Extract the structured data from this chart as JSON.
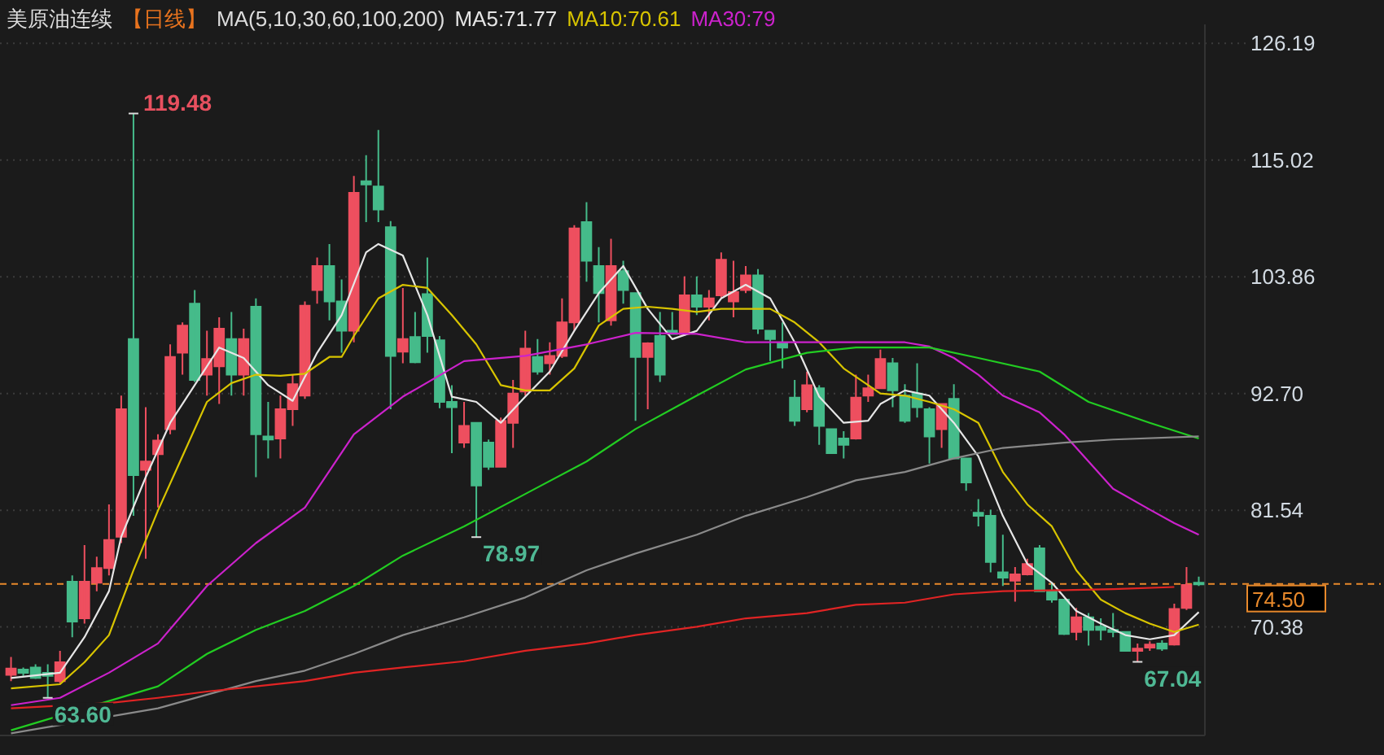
{
  "chart_data": {
    "type": "candlestick",
    "title": "美原油连续",
    "subtitle": "【日线】",
    "annotations": [
      "MA(5,10,30,60,100,200)",
      "119.48",
      "78.97",
      "63.60",
      "67.04"
    ],
    "categories": [
      null,
      null,
      null,
      null,
      null,
      null,
      null,
      null,
      null,
      null,
      null,
      null,
      null,
      null,
      null,
      null,
      null,
      null,
      null,
      null,
      null,
      null,
      null,
      null,
      null,
      null,
      null,
      null,
      null,
      null,
      null,
      null,
      null,
      null,
      null,
      null,
      null,
      null,
      null,
      null,
      null,
      null,
      null,
      null,
      null,
      null,
      null,
      null,
      null,
      null,
      null,
      null,
      null,
      null,
      null,
      null,
      null,
      null,
      null,
      null,
      null,
      null,
      null,
      null,
      null,
      null,
      null,
      null,
      null,
      null,
      null,
      null,
      null,
      null,
      null,
      null,
      null,
      null,
      null,
      null,
      null,
      null,
      null,
      null,
      null,
      null,
      null,
      null,
      null,
      null,
      null,
      null,
      null,
      null,
      null,
      null,
      null,
      null
    ],
    "ohlc": [
      [
        65.8,
        67.5,
        65.2,
        66.4
      ],
      [
        66.3,
        66.5,
        65.7,
        66.0
      ],
      [
        66.5,
        66.8,
        65.4,
        65.5
      ],
      [
        66.0,
        66.8,
        63.6,
        65.7
      ],
      [
        65.2,
        68.1,
        65.0,
        67.0
      ],
      [
        74.7,
        75.3,
        69.4,
        70.9
      ],
      [
        71.2,
        78.2,
        70.7,
        74.7
      ],
      [
        74.6,
        77.1,
        73.8,
        76.0
      ],
      [
        76.0,
        82.1,
        75.3,
        78.7
      ],
      [
        79.0,
        92.5,
        78.4,
        91.2
      ],
      [
        97.9,
        119.48,
        81.0,
        84.9
      ],
      [
        85.4,
        91.4,
        76.9,
        86.2
      ],
      [
        86.9,
        88.8,
        81.8,
        88.2
      ],
      [
        89.3,
        97.4,
        88.8,
        96.2
      ],
      [
        96.6,
        99.5,
        94.5,
        99.2
      ],
      [
        101.3,
        102.6,
        93.8,
        94.0
      ],
      [
        94.5,
        98.7,
        92.5,
        96.0
      ],
      [
        95.3,
        100.0,
        91.7,
        98.9
      ],
      [
        97.9,
        100.5,
        92.5,
        94.5
      ],
      [
        94.5,
        98.9,
        92.5,
        97.9
      ],
      [
        101.0,
        101.8,
        84.7,
        88.8
      ],
      [
        88.6,
        91.9,
        86.5,
        88.3
      ],
      [
        88.4,
        92.5,
        86.5,
        91.2
      ],
      [
        91.2,
        94.5,
        89.6,
        93.6
      ],
      [
        92.5,
        101.5,
        92.2,
        101.1
      ],
      [
        102.6,
        105.7,
        101.3,
        104.9
      ],
      [
        104.9,
        107.0,
        99.7,
        101.5
      ],
      [
        101.5,
        103.6,
        96.6,
        98.7
      ],
      [
        98.7,
        113.5,
        97.6,
        111.9
      ],
      [
        113.0,
        115.5,
        109.1,
        112.7
      ],
      [
        112.5,
        117.9,
        109.1,
        110.3
      ],
      [
        108.6,
        109.2,
        91.2,
        96.3
      ],
      [
        96.7,
        102.8,
        95.6,
        97.9
      ],
      [
        98.1,
        100.5,
        95.6,
        95.7
      ],
      [
        102.2,
        105.7,
        96.6,
        98.2
      ],
      [
        97.8,
        98.2,
        91.3,
        91.9
      ],
      [
        91.9,
        93.5,
        87.0,
        91.4
      ],
      [
        88.0,
        91.9,
        87.5,
        89.6
      ],
      [
        89.9,
        89.9,
        78.97,
        83.9
      ],
      [
        88.0,
        88.3,
        85.4,
        85.7
      ],
      [
        85.7,
        90.4,
        85.7,
        90.1
      ],
      [
        89.9,
        94.0,
        87.5,
        92.7
      ],
      [
        92.9,
        98.7,
        92.5,
        97.0
      ],
      [
        96.2,
        97.9,
        94.5,
        94.8
      ],
      [
        95.6,
        97.6,
        94.5,
        96.3
      ],
      [
        96.3,
        101.8,
        96.1,
        99.5
      ],
      [
        99.5,
        108.8,
        98.7,
        108.5
      ],
      [
        109.1,
        111.0,
        103.4,
        105.4
      ],
      [
        104.9,
        106.7,
        99.5,
        102.3
      ],
      [
        99.7,
        107.5,
        99.2,
        104.9
      ],
      [
        104.4,
        105.4,
        101.3,
        102.6
      ],
      [
        102.3,
        102.3,
        90.1,
        96.2
      ],
      [
        96.2,
        97.6,
        91.2,
        97.5
      ],
      [
        98.2,
        100.5,
        93.8,
        94.5
      ],
      [
        98.7,
        100.5,
        98.4,
        98.4
      ],
      [
        98.4,
        103.9,
        98.2,
        102.1
      ],
      [
        102.1,
        103.9,
        100.2,
        101.0
      ],
      [
        101.0,
        102.6,
        99.7,
        101.8
      ],
      [
        102.1,
        106.2,
        101.8,
        105.5
      ],
      [
        101.5,
        105.4,
        100.0,
        102.4
      ],
      [
        102.6,
        104.9,
        102.3,
        104.0
      ],
      [
        104.0,
        104.6,
        98.4,
        98.9
      ],
      [
        98.7,
        98.7,
        95.8,
        97.9
      ],
      [
        97.5,
        99.5,
        95.1,
        97.1
      ],
      [
        92.3,
        94.0,
        89.6,
        90.1
      ],
      [
        91.2,
        94.8,
        90.9,
        93.5
      ],
      [
        93.2,
        93.5,
        87.8,
        89.6
      ],
      [
        89.3,
        89.3,
        87.0,
        87.0
      ],
      [
        88.4,
        89.1,
        86.5,
        87.8
      ],
      [
        88.4,
        94.5,
        88.3,
        92.3
      ],
      [
        92.5,
        94.5,
        91.9,
        93.2
      ],
      [
        93.2,
        96.9,
        93.2,
        96.0
      ],
      [
        95.6,
        96.1,
        91.4,
        93.0
      ],
      [
        92.5,
        93.6,
        89.9,
        90.1
      ],
      [
        92.7,
        95.6,
        90.4,
        91.4
      ],
      [
        91.2,
        91.4,
        86.0,
        88.6
      ],
      [
        89.3,
        91.7,
        87.5,
        91.7
      ],
      [
        92.2,
        93.6,
        86.5,
        86.5
      ],
      [
        86.5,
        86.5,
        83.4,
        84.2
      ],
      [
        81.3,
        82.6,
        80.0,
        81.0
      ],
      [
        81.0,
        81.6,
        75.6,
        76.6
      ],
      [
        75.6,
        79.2,
        74.3,
        75.1
      ],
      [
        74.8,
        76.1,
        72.8,
        75.4
      ],
      [
        75.4,
        76.9,
        75.3,
        76.4
      ],
      [
        77.9,
        78.2,
        73.8,
        73.8
      ],
      [
        73.8,
        74.6,
        72.7,
        73.0
      ],
      [
        73.0,
        73.0,
        69.6,
        69.7
      ],
      [
        69.9,
        72.2,
        69.1,
        71.3
      ],
      [
        71.3,
        71.7,
        68.6,
        70.1
      ],
      [
        70.4,
        71.2,
        69.1,
        70.1
      ],
      [
        70.1,
        71.7,
        69.4,
        69.9
      ],
      [
        69.9,
        69.9,
        68.1,
        68.1
      ],
      [
        68.1,
        68.8,
        67.04,
        68.3
      ],
      [
        68.4,
        69.0,
        68.1,
        68.7
      ],
      [
        68.8,
        69.1,
        68.1,
        68.3
      ],
      [
        68.7,
        72.6,
        68.6,
        72.1
      ],
      [
        72.2,
        76.1,
        72.0,
        74.4
      ],
      [
        74.6,
        75.2,
        74.3,
        74.5
      ]
    ],
    "colors": [
      "#ee4f5f",
      "#45bb8a",
      "#45bb8a",
      "#45bb8a",
      "#ee4f5f",
      "#45bb8a",
      "#ee4f5f",
      "#ee4f5f",
      "#ee4f5f",
      "#ee4f5f",
      "#45bb8a",
      "#ee4f5f",
      "#ee4f5f",
      "#ee4f5f",
      "#ee4f5f",
      "#45bb8a",
      "#ee4f5f",
      "#ee4f5f",
      "#45bb8a",
      "#ee4f5f",
      "#45bb8a",
      "#45bb8a",
      "#ee4f5f",
      "#ee4f5f",
      "#ee4f5f",
      "#ee4f5f",
      "#45bb8a",
      "#45bb8a",
      "#ee4f5f",
      "#45bb8a",
      "#45bb8a",
      "#45bb8a",
      "#ee4f5f",
      "#45bb8a",
      "#45bb8a",
      "#45bb8a",
      "#45bb8a",
      "#ee4f5f",
      "#45bb8a",
      "#45bb8a",
      "#ee4f5f",
      "#ee4f5f",
      "#ee4f5f",
      "#45bb8a",
      "#ee4f5f",
      "#ee4f5f",
      "#ee4f5f",
      "#45bb8a",
      "#45bb8a",
      "#ee4f5f",
      "#45bb8a",
      "#45bb8a",
      "#ee4f5f",
      "#45bb8a",
      "#45bb8a",
      "#ee4f5f",
      "#45bb8a",
      "#ee4f5f",
      "#ee4f5f",
      "#ee4f5f",
      "#ee4f5f",
      "#45bb8a",
      "#45bb8a",
      "#45bb8a",
      "#45bb8a",
      "#ee4f5f",
      "#45bb8a",
      "#45bb8a",
      "#45bb8a",
      "#ee4f5f",
      "#ee4f5f",
      "#ee4f5f",
      "#45bb8a",
      "#45bb8a",
      "#45bb8a",
      "#45bb8a",
      "#ee4f5f",
      "#45bb8a",
      "#45bb8a",
      "#45bb8a",
      "#45bb8a",
      "#45bb8a",
      "#ee4f5f",
      "#ee4f5f",
      "#45bb8a",
      "#45bb8a",
      "#45bb8a",
      "#ee4f5f",
      "#45bb8a",
      "#45bb8a",
      "#45bb8a",
      "#45bb8a",
      "#ee4f5f",
      "#ee4f5f",
      "#45bb8a",
      "#ee4f5f",
      "#ee4f5f",
      "#45bb8a"
    ],
    "series": [
      {
        "type": "line",
        "name": "MA5:71.77",
        "color": "#e6e6e6",
        "values": [
          65.5,
          null,
          null,
          null,
          66.0,
          null,
          69.4,
          null,
          73.8,
          79.0,
          null,
          84.7,
          null,
          89.9,
          null,
          93.5,
          null,
          97.1,
          null,
          96.1,
          null,
          93.5,
          null,
          92.0,
          null,
          96.6,
          null,
          100.2,
          null,
          106.2,
          107.0,
          null,
          105.9,
          null,
          100.2,
          null,
          92.4,
          null,
          91.9,
          null,
          89.9,
          null,
          92.4,
          null,
          94.8,
          null,
          98.7,
          null,
          102.3,
          null,
          104.9,
          null,
          100.8,
          null,
          97.9,
          null,
          98.7,
          null,
          101.8,
          null,
          103.1,
          null,
          101.8,
          null,
          97.6,
          null,
          92.4,
          null,
          89.9,
          null,
          90.1,
          91.7,
          null,
          93.0,
          null,
          92.5,
          null,
          89.9,
          null,
          86.7,
          null,
          81.0,
          null,
          76.4,
          null,
          74.6,
          null,
          71.9,
          null,
          70.7,
          null,
          69.6,
          null,
          69.2,
          null,
          69.6,
          null,
          71.8
        ]
      },
      {
        "type": "line",
        "name": "MA10:70.61",
        "color": "#d8c400",
        "values": [
          64.5,
          null,
          null,
          null,
          64.9,
          null,
          67.0,
          null,
          69.6,
          null,
          75.8,
          null,
          81.5,
          null,
          86.7,
          null,
          91.9,
          null,
          93.7,
          null,
          94.5,
          null,
          94.4,
          null,
          94.6,
          null,
          96.2,
          96.2,
          98.2,
          null,
          101.8,
          null,
          103.1,
          null,
          102.8,
          null,
          100.2,
          null,
          97.4,
          null,
          93.5,
          null,
          93.0,
          null,
          93.0,
          null,
          95.1,
          null,
          99.2,
          null,
          100.8,
          null,
          101.0,
          null,
          100.8,
          null,
          100.5,
          null,
          100.8,
          null,
          100.8,
          null,
          100.8,
          null,
          99.5,
          null,
          97.6,
          null,
          95.1,
          null,
          93.5,
          92.7,
          null,
          92.5,
          null,
          91.9,
          null,
          91.2,
          null,
          89.9,
          null,
          85.2,
          null,
          82.1,
          null,
          80.0,
          null,
          75.8,
          null,
          73.0,
          null,
          71.7,
          null,
          70.7,
          null,
          69.9,
          null,
          70.6
        ]
      },
      {
        "type": "line",
        "name": "MA30:79",
        "color": "#cc22cc",
        "values": [
          62.9,
          null,
          null,
          null,
          63.6,
          null,
          null,
          null,
          66.0,
          null,
          null,
          null,
          68.8,
          null,
          null,
          null,
          74.3,
          null,
          null,
          null,
          78.4,
          null,
          null,
          null,
          81.8,
          null,
          null,
          null,
          88.8,
          null,
          null,
          null,
          92.4,
          null,
          null,
          null,
          null,
          95.8,
          null,
          null,
          null,
          null,
          96.3,
          null,
          null,
          null,
          null,
          97.4,
          null,
          null,
          null,
          98.5,
          null,
          null,
          null,
          null,
          98.4,
          null,
          null,
          null,
          97.6,
          null,
          null,
          null,
          null,
          97.6,
          null,
          null,
          null,
          97.6,
          null,
          null,
          null,
          97.6,
          null,
          97.2,
          null,
          96.1,
          null,
          94.5,
          null,
          92.5,
          null,
          null,
          90.9,
          null,
          88.8,
          null,
          86.2,
          null,
          83.6,
          null,
          null,
          81.6,
          null,
          80.3,
          null,
          79.2
        ]
      },
      {
        "type": "line",
        "color": "#22cc22",
        "values": [
          60.5,
          null,
          null,
          null,
          null,
          null,
          null,
          null,
          null,
          null,
          null,
          null,
          64.7,
          null,
          null,
          null,
          67.8,
          null,
          null,
          null,
          70.1,
          null,
          null,
          null,
          71.9,
          null,
          null,
          null,
          74.3,
          null,
          null,
          null,
          77.2,
          null,
          null,
          null,
          null,
          80.0,
          null,
          null,
          null,
          null,
          83.1,
          null,
          null,
          null,
          null,
          86.2,
          null,
          null,
          null,
          89.3,
          null,
          null,
          null,
          null,
          92.5,
          null,
          null,
          null,
          95.0,
          null,
          null,
          null,
          null,
          96.6,
          null,
          null,
          null,
          97.1,
          null,
          null,
          null,
          null,
          null,
          97.1,
          null,
          null,
          null,
          96.1,
          null,
          null,
          null,
          null,
          94.8,
          null,
          null,
          null,
          91.9,
          null,
          null,
          null,
          null,
          89.9,
          null,
          null,
          null,
          88.4
        ]
      },
      {
        "type": "line",
        "color": "#8a8a8a",
        "values": [
          60.2,
          null,
          null,
          null,
          null,
          null,
          null,
          null,
          null,
          null,
          null,
          null,
          62.6,
          null,
          null,
          null,
          63.9,
          null,
          null,
          null,
          65.2,
          null,
          null,
          null,
          66.2,
          null,
          null,
          null,
          67.8,
          null,
          null,
          null,
          69.6,
          null,
          null,
          null,
          null,
          71.3,
          null,
          null,
          null,
          null,
          73.2,
          null,
          null,
          null,
          null,
          75.8,
          null,
          null,
          null,
          77.4,
          null,
          null,
          null,
          null,
          79.2,
          null,
          null,
          null,
          81.0,
          null,
          null,
          null,
          null,
          82.8,
          null,
          null,
          null,
          84.4,
          null,
          null,
          null,
          85.2,
          null,
          null,
          null,
          86.5,
          null,
          null,
          null,
          87.5,
          null,
          null,
          null,
          null,
          88.0,
          null,
          null,
          null,
          88.3,
          null,
          null,
          null,
          null,
          null,
          null,
          88.6
        ]
      },
      {
        "type": "line",
        "color": "#e02424",
        "values": [
          62.6,
          null,
          null,
          null,
          null,
          null,
          null,
          null,
          63.1,
          null,
          null,
          null,
          63.6,
          null,
          null,
          null,
          64.2,
          null,
          null,
          null,
          64.7,
          null,
          null,
          null,
          65.2,
          null,
          null,
          null,
          66.0,
          null,
          null,
          null,
          66.5,
          null,
          null,
          null,
          null,
          67.1,
          null,
          null,
          null,
          null,
          68.1,
          null,
          null,
          null,
          null,
          68.8,
          null,
          null,
          null,
          69.6,
          null,
          null,
          null,
          null,
          70.4,
          null,
          null,
          null,
          71.2,
          null,
          null,
          null,
          null,
          71.7,
          null,
          null,
          null,
          72.5,
          null,
          null,
          null,
          72.7,
          null,
          null,
          null,
          73.5,
          null,
          null,
          null,
          73.8,
          null,
          null,
          null,
          null,
          73.9,
          null,
          null,
          null,
          74.0,
          null,
          null,
          null,
          null,
          74.2,
          null,
          null
        ]
      }
    ],
    "ylim": [
      60.0,
      128.0
    ],
    "yticks": [
      126.19,
      115.02,
      103.86,
      {
        "value": 92.7,
        "label": "92.70"
      },
      81.54,
      70.38
    ],
    "ref_lines": [
      {
        "axis": "y",
        "value": 74.5,
        "label": "74.50",
        "color": "#e8892b",
        "line_style": "dashed"
      }
    ],
    "grid": "y",
    "legend": "top"
  }
}
